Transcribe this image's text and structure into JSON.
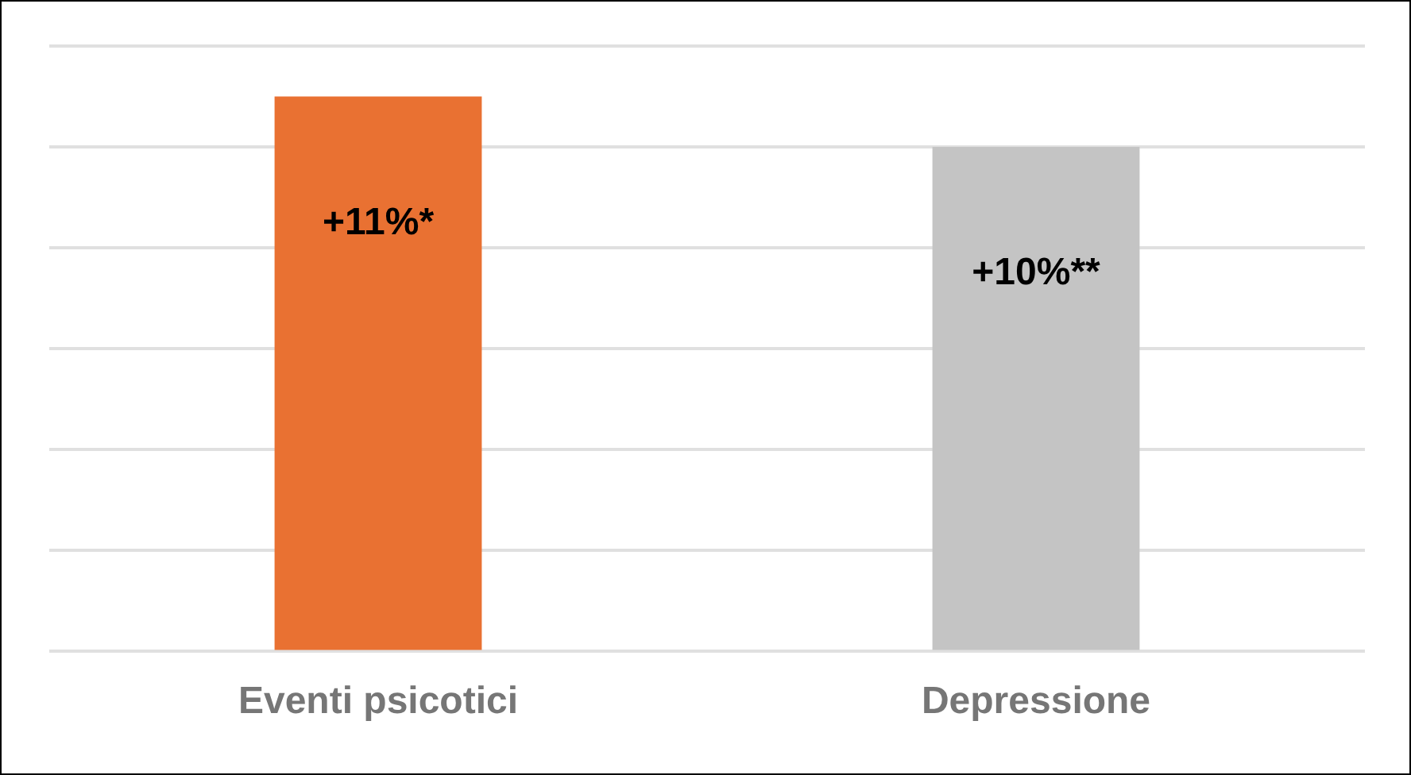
{
  "chart_data": {
    "type": "bar",
    "categories": [
      "Eventi psicotici",
      "Depressione"
    ],
    "values": [
      11,
      10
    ],
    "colors": [
      "#e97132",
      "#c4c4c4"
    ],
    "value_labels": [
      "+11%*",
      "+10%**"
    ],
    "ylim": [
      0,
      12
    ],
    "yticks": [
      {
        "value": 0,
        "label": null
      },
      {
        "value": 2,
        "label": null
      },
      {
        "value": 4,
        "label": null
      },
      {
        "value": 6,
        "label": null
      },
      {
        "value": 8,
        "label": null
      },
      {
        "value": 10,
        "label": null
      },
      {
        "value": 12,
        "label": null
      }
    ],
    "grid": "y",
    "tick_labels": "x",
    "legend": false
  }
}
